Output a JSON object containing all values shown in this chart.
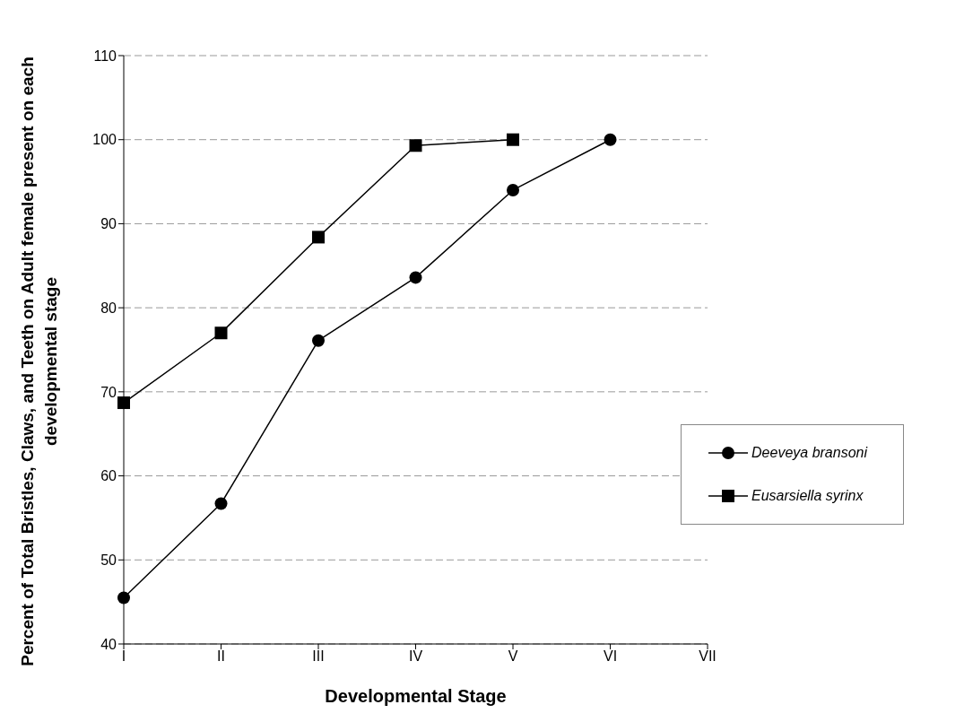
{
  "chart_data": {
    "type": "line",
    "xlabel": "Developmental Stage",
    "ylabel": "Percent of Total Bristles, Claws, and Teeth on Adult female present on each developmental stage",
    "categories": [
      "I",
      "II",
      "III",
      "IV",
      "V",
      "VI",
      "VII"
    ],
    "series": [
      {
        "name": "Deeveya bransoni",
        "color": "#000000",
        "marker": "circle",
        "values": [
          45.5,
          56.7,
          76.1,
          83.6,
          94,
          100,
          null
        ]
      },
      {
        "name": "Eusarsiella syrinx",
        "color": "#000000",
        "marker": "square",
        "values": [
          68.7,
          77,
          88.4,
          99.3,
          100,
          null,
          null
        ]
      }
    ],
    "ylim": [
      40,
      110
    ],
    "yticks": [
      40,
      50,
      60,
      70,
      80,
      90,
      100,
      110
    ],
    "grid": "y",
    "legend": "right",
    "line_style": "solid"
  }
}
